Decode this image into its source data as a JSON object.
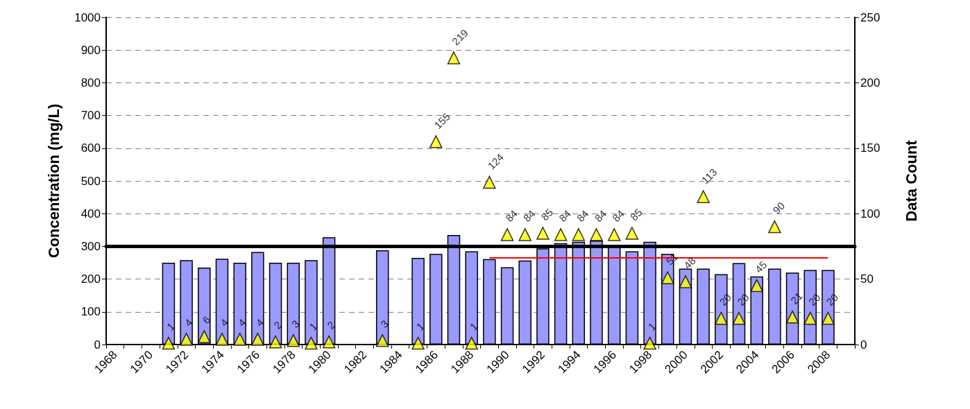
{
  "chart_data": {
    "type": "bar",
    "ylabel": "Concentration (mg/L)",
    "y2label": "Data Count",
    "categories": [
      "1968",
      null,
      "1970",
      null,
      "1972",
      null,
      "1974",
      null,
      "1976",
      null,
      "1978",
      null,
      "1980",
      null,
      "1982",
      null,
      "1984",
      null,
      "1986",
      null,
      "1988",
      null,
      "1990",
      null,
      "1992",
      null,
      "1994",
      null,
      "1996",
      null,
      "1998",
      null,
      "2000",
      null,
      "2002",
      null,
      "2004",
      null,
      "2006",
      null,
      "2008",
      null
    ],
    "series": [
      {
        "color": "#9999ff",
        "values": [
          null,
          null,
          null,
          250,
          258,
          235,
          262,
          250,
          283,
          250,
          250,
          258,
          328,
          null,
          null,
          288,
          null,
          265,
          277,
          335,
          285,
          261,
          236,
          257,
          294,
          310,
          314,
          318,
          300,
          285,
          314,
          277,
          232,
          232,
          215,
          249,
          208,
          232,
          220,
          228,
          228,
          null
        ]
      },
      {
        "type": "line",
        "color": "#ff0000",
        "values": [
          null,
          null,
          null,
          null,
          null,
          null,
          null,
          null,
          null,
          null,
          null,
          null,
          null,
          null,
          null,
          null,
          null,
          null,
          null,
          null,
          null,
          265,
          265,
          265,
          265,
          265,
          265,
          265,
          265,
          265,
          265,
          265,
          265,
          265,
          265,
          265,
          265,
          265,
          265,
          265,
          265,
          null
        ]
      },
      {
        "type": "scatter",
        "color": "#ffff00",
        "axis": "y2",
        "marker": "triangle",
        "data_labels": true,
        "values": [
          null,
          null,
          null,
          1,
          4,
          6,
          4,
          4,
          4,
          2,
          3,
          1,
          2,
          null,
          null,
          3,
          null,
          1,
          155,
          219,
          1,
          124,
          84,
          84,
          85,
          84,
          84,
          84,
          84,
          85,
          1,
          51,
          48,
          113,
          20,
          20,
          45,
          90,
          21,
          20,
          20,
          null
        ]
      }
    ],
    "ylim": [
      0,
      1000
    ],
    "yticks": [
      0,
      100,
      200,
      300,
      400,
      500,
      600,
      700,
      800,
      900,
      1000
    ],
    "y2lim": [
      0,
      250
    ],
    "y2ticks": [
      0,
      50,
      100,
      150,
      200,
      250
    ],
    "ref_lines": [
      {
        "axis": "y",
        "value": 300,
        "color": "#000000"
      }
    ],
    "grid": "y"
  }
}
